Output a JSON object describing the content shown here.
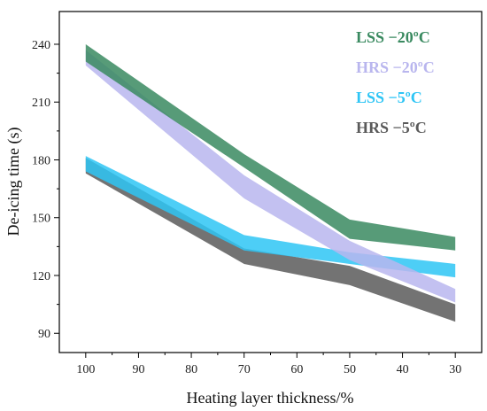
{
  "chart_data": {
    "type": "area",
    "xlabel": "Heating layer thickness/%",
    "ylabel": "De-icing time (s)",
    "x": [
      100,
      70,
      50,
      30
    ],
    "xticks": [
      100,
      90,
      80,
      70,
      60,
      50,
      40,
      30
    ],
    "xlim": [
      105,
      25
    ],
    "yticks": [
      90,
      120,
      150,
      180,
      210,
      240
    ],
    "ylim": [
      80,
      257
    ],
    "grid": false,
    "legend_position": "top-right",
    "series": [
      {
        "name": "LSS −20ºC",
        "color": "#3a8a60",
        "lower": [
          231,
          176,
          139,
          133
        ],
        "upper": [
          240,
          183,
          149,
          140
        ]
      },
      {
        "name": "HRS −20ºC",
        "color": "#b9b6ee",
        "lower": [
          229,
          160,
          128,
          106
        ],
        "upper": [
          237,
          172,
          138,
          113
        ]
      },
      {
        "name": "LSS −5ºC",
        "color": "#2ec5f5",
        "lower": [
          174,
          133,
          126,
          119
        ],
        "upper": [
          182,
          141,
          132,
          126
        ]
      },
      {
        "name": "HRS −5ºC",
        "color": "#5a5a5a",
        "lower": [
          173,
          126,
          115,
          96
        ],
        "upper": [
          181,
          134,
          125,
          105
        ]
      }
    ]
  }
}
